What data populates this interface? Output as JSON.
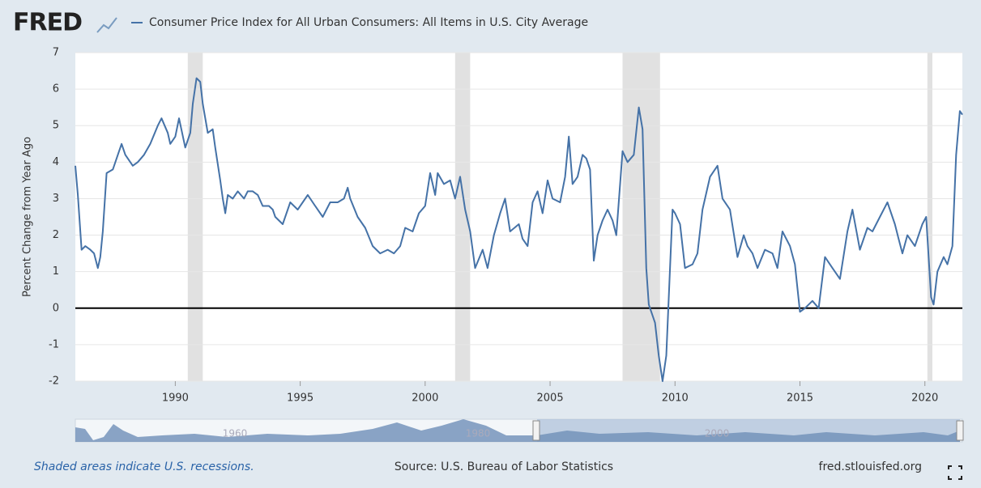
{
  "header": {
    "logo": "FRED"
  },
  "chart_data": {
    "type": "line",
    "y_label": "Percent Change from Year Ago",
    "x": [
      1986.0,
      1986.1,
      1986.25,
      1986.4,
      1986.6,
      1986.75,
      1986.9,
      1987.0,
      1987.1,
      1987.25,
      1987.5,
      1987.75,
      1987.85,
      1988.0,
      1988.3,
      1988.5,
      1988.75,
      1989.0,
      1989.3,
      1989.45,
      1989.7,
      1989.8,
      1990.0,
      1990.15,
      1990.4,
      1990.6,
      1990.7,
      1990.85,
      1991.0,
      1991.1,
      1991.3,
      1991.5,
      1991.6,
      1991.8,
      1991.9,
      1992.0,
      1992.1,
      1992.3,
      1992.5,
      1992.75,
      1992.9,
      1993.1,
      1993.3,
      1993.5,
      1993.75,
      1993.9,
      1994.0,
      1994.3,
      1994.6,
      1994.9,
      1995.1,
      1995.3,
      1995.6,
      1995.9,
      1996.2,
      1996.5,
      1996.75,
      1996.9,
      1997.0,
      1997.3,
      1997.6,
      1997.9,
      1998.2,
      1998.5,
      1998.75,
      1999.0,
      1999.2,
      1999.5,
      1999.75,
      2000.0,
      2000.2,
      2000.4,
      2000.5,
      2000.75,
      2001.0,
      2001.2,
      2001.4,
      2001.6,
      2001.8,
      2002.0,
      2002.3,
      2002.5,
      2002.75,
      2003.0,
      2003.2,
      2003.4,
      2003.75,
      2003.9,
      2004.1,
      2004.3,
      2004.5,
      2004.7,
      2004.9,
      2005.1,
      2005.4,
      2005.6,
      2005.75,
      2005.9,
      2006.1,
      2006.3,
      2006.45,
      2006.6,
      2006.75,
      2006.9,
      2007.1,
      2007.3,
      2007.5,
      2007.65,
      2007.9,
      2008.1,
      2008.35,
      2008.55,
      2008.7,
      2008.85,
      2008.95,
      2009.2,
      2009.35,
      2009.5,
      2009.65,
      2009.9,
      2010.0,
      2010.2,
      2010.4,
      2010.7,
      2010.9,
      2011.1,
      2011.4,
      2011.7,
      2011.9,
      2012.2,
      2012.5,
      2012.75,
      2012.9,
      2013.1,
      2013.3,
      2013.6,
      2013.9,
      2014.1,
      2014.3,
      2014.6,
      2014.8,
      2015.0,
      2015.2,
      2015.5,
      2015.75,
      2016.0,
      2016.3,
      2016.6,
      2016.9,
      2017.1,
      2017.4,
      2017.7,
      2017.9,
      2018.2,
      2018.5,
      2018.8,
      2018.95,
      2019.1,
      2019.3,
      2019.6,
      2019.9,
      2020.05,
      2020.25,
      2020.35,
      2020.5,
      2020.75,
      2020.9,
      2021.1,
      2021.25,
      2021.4,
      2021.5
    ],
    "series": [
      {
        "name": "Consumer Price Index for All Urban Consumers: All Items in U.S. City Average",
        "color": "#4572a7",
        "values": [
          3.9,
          3.1,
          1.6,
          1.7,
          1.6,
          1.5,
          1.1,
          1.4,
          2.1,
          3.7,
          3.8,
          4.3,
          4.5,
          4.2,
          3.9,
          4.0,
          4.2,
          4.5,
          5.0,
          5.2,
          4.8,
          4.5,
          4.7,
          5.2,
          4.4,
          4.8,
          5.6,
          6.3,
          6.2,
          5.6,
          4.8,
          4.9,
          4.4,
          3.5,
          3.0,
          2.6,
          3.1,
          3.0,
          3.2,
          3.0,
          3.2,
          3.2,
          3.1,
          2.8,
          2.8,
          2.7,
          2.5,
          2.3,
          2.9,
          2.7,
          2.9,
          3.1,
          2.8,
          2.5,
          2.9,
          2.9,
          3.0,
          3.3,
          3.0,
          2.5,
          2.2,
          1.7,
          1.5,
          1.6,
          1.5,
          1.7,
          2.2,
          2.1,
          2.6,
          2.8,
          3.7,
          3.1,
          3.7,
          3.4,
          3.5,
          3.0,
          3.6,
          2.7,
          2.1,
          1.1,
          1.6,
          1.1,
          2.0,
          2.6,
          3.0,
          2.1,
          2.3,
          1.9,
          1.7,
          2.9,
          3.2,
          2.6,
          3.5,
          3.0,
          2.9,
          3.6,
          4.7,
          3.4,
          3.6,
          4.2,
          4.1,
          3.8,
          1.3,
          2.0,
          2.4,
          2.7,
          2.4,
          2.0,
          4.3,
          4.0,
          4.2,
          5.5,
          4.9,
          1.1,
          0.1,
          -0.4,
          -1.3,
          -2.0,
          -1.3,
          2.7,
          2.6,
          2.3,
          1.1,
          1.2,
          1.5,
          2.7,
          3.6,
          3.9,
          3.0,
          2.7,
          1.4,
          2.0,
          1.7,
          1.5,
          1.1,
          1.6,
          1.5,
          1.1,
          2.1,
          1.7,
          1.2,
          -0.1,
          0.0,
          0.2,
          0.0,
          1.4,
          1.1,
          0.8,
          2.1,
          2.7,
          1.6,
          2.2,
          2.1,
          2.5,
          2.9,
          2.3,
          1.9,
          1.5,
          2.0,
          1.7,
          2.3,
          2.5,
          0.3,
          0.1,
          1.0,
          1.4,
          1.2,
          1.7,
          4.2,
          5.4,
          5.3
        ]
      }
    ],
    "xlim": [
      1986.0,
      2021.5
    ],
    "xticks": [
      1990,
      1995,
      2000,
      2005,
      2010,
      2015,
      2020
    ],
    "ylim": [
      -2,
      7
    ],
    "yticks": [
      -2,
      -1,
      0,
      1,
      2,
      3,
      4,
      5,
      6,
      7
    ],
    "grid": true,
    "recessions": [
      [
        1990.5,
        1991.1
      ],
      [
        2001.2,
        2001.8
      ],
      [
        2007.9,
        2009.4
      ],
      [
        2020.1,
        2020.3
      ]
    ]
  },
  "navigator": {
    "labels": [
      "1960",
      "1980",
      "2000"
    ]
  },
  "footer": {
    "note": "Shaded areas indicate U.S. recessions.",
    "source": "Source: U.S. Bureau of Labor Statistics",
    "site": "fred.stlouisfed.org"
  }
}
